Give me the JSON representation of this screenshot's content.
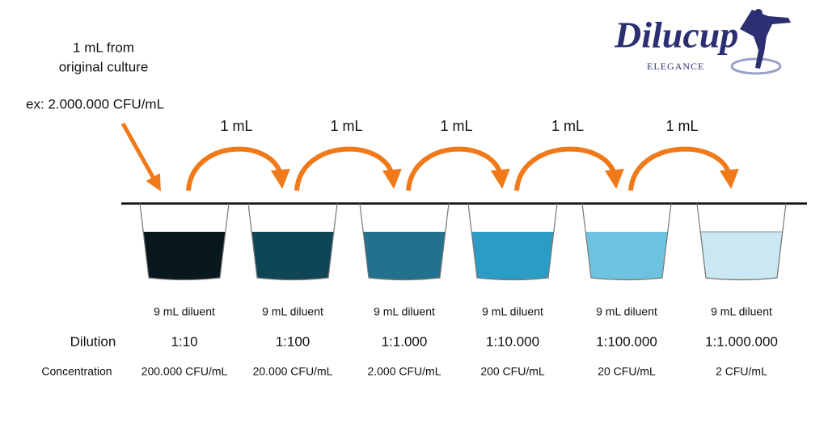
{
  "logo": {
    "name": "Dilucup",
    "tagline": "ELEGANCE"
  },
  "source": {
    "line1": "1 mL from",
    "line2": "original culture",
    "example": "ex: 2.000.000 CFU/mL"
  },
  "transfers": [
    "1 mL",
    "1 mL",
    "1 mL",
    "1 mL",
    "1 mL"
  ],
  "row_labels": {
    "dilution": "Dilution",
    "concentration": "Concentration"
  },
  "cups": [
    {
      "diluent": "9 mL diluent",
      "dilution": "1:10",
      "concentration": "200.000 CFU/mL",
      "color": "#08181c"
    },
    {
      "diluent": "9 mL diluent",
      "dilution": "1:100",
      "concentration": "20.000 CFU/mL",
      "color": "#0f4656"
    },
    {
      "diluent": "9 mL diluent",
      "dilution": "1:1.000",
      "concentration": "2.000 CFU/mL",
      "color": "#22718d"
    },
    {
      "diluent": "9 mL diluent",
      "dilution": "1:10.000",
      "concentration": "200 CFU/mL",
      "color": "#2b9cc3"
    },
    {
      "diluent": "9 mL diluent",
      "dilution": "1:100.000",
      "concentration": "20 CFU/mL",
      "color": "#6dc3df"
    },
    {
      "diluent": "9 mL diluent",
      "dilution": "1:1.000.000",
      "concentration": "2 CFU/mL",
      "color": "#c9e8f3"
    }
  ]
}
